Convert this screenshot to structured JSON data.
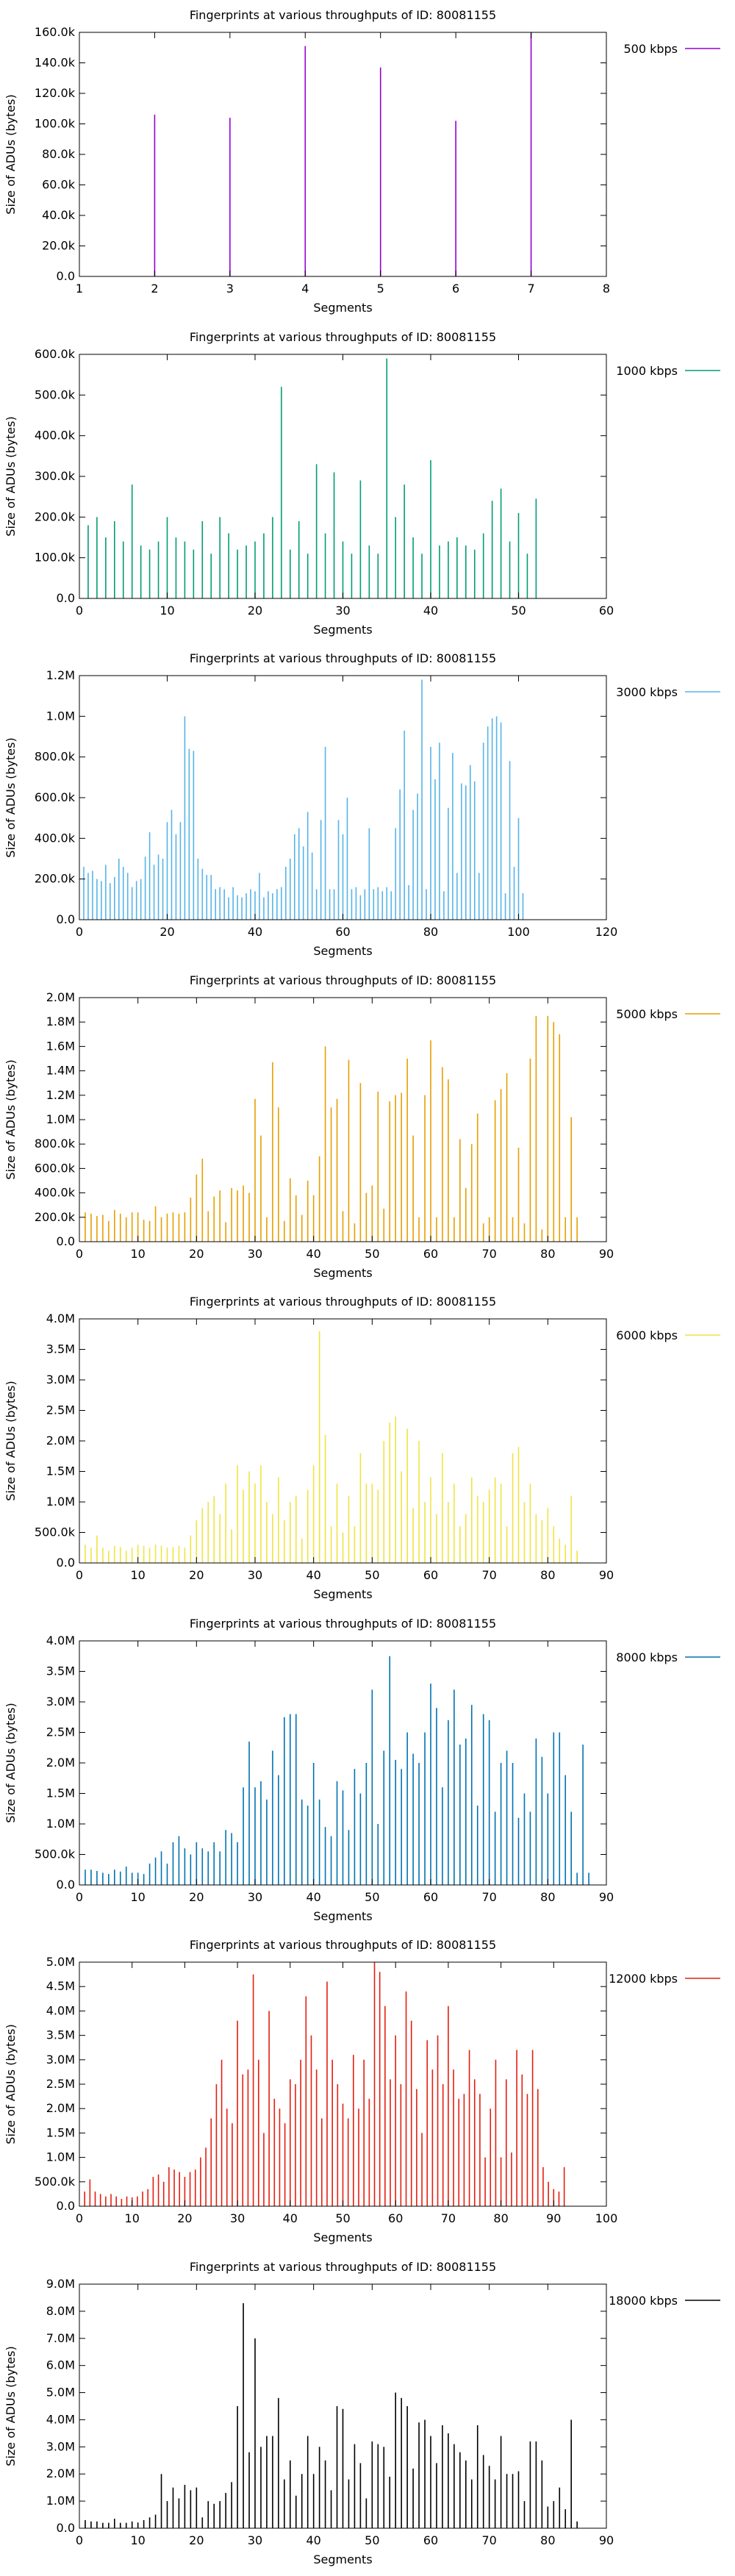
{
  "chart_data": [
    {
      "type": "bar",
      "title": "Fingerprints at various throughputs of ID: 80081155",
      "xlabel": "Segments",
      "ylabel": "Size of ADUs (bytes)",
      "legend": "500 kbps",
      "legend_position": "top-right outside",
      "color": "#9400d3",
      "xlim": [
        1,
        8
      ],
      "xticks": [
        1,
        2,
        3,
        4,
        5,
        6,
        7,
        8
      ],
      "ylim": [
        0,
        160000
      ],
      "yticks": [
        0,
        20000,
        40000,
        60000,
        80000,
        100000,
        120000,
        140000,
        160000
      ],
      "ytick_labels": [
        "0.0",
        "20.0k",
        "40.0k",
        "60.0k",
        "80.0k",
        "100.0k",
        "120.0k",
        "140.0k",
        "160.0k"
      ],
      "x": [
        2,
        3,
        4,
        5,
        6,
        7
      ],
      "values": [
        106000,
        104000,
        151000,
        137000,
        102000,
        160000
      ]
    },
    {
      "type": "bar",
      "title": "Fingerprints at various throughputs of ID: 80081155",
      "xlabel": "Segments",
      "ylabel": "Size of ADUs (bytes)",
      "legend": "1000 kbps",
      "legend_position": "top-right outside",
      "color": "#009e73",
      "xlim": [
        0,
        60
      ],
      "xticks": [
        0,
        10,
        20,
        30,
        40,
        50,
        60
      ],
      "ylim": [
        0,
        600000
      ],
      "yticks": [
        0,
        100000,
        200000,
        300000,
        400000,
        500000,
        600000
      ],
      "ytick_labels": [
        "0.0",
        "100.0k",
        "200.0k",
        "300.0k",
        "400.0k",
        "500.0k",
        "600.0k"
      ],
      "x_start": 1,
      "values": [
        180000,
        200000,
        150000,
        190000,
        140000,
        280000,
        130000,
        120000,
        140000,
        200000,
        150000,
        140000,
        120000,
        190000,
        110000,
        200000,
        160000,
        120000,
        130000,
        140000,
        160000,
        200000,
        520000,
        120000,
        190000,
        110000,
        330000,
        160000,
        310000,
        140000,
        110000,
        290000,
        130000,
        110000,
        590000,
        200000,
        280000,
        150000,
        110000,
        340000,
        130000,
        140000,
        150000,
        130000,
        120000,
        160000,
        240000,
        270000,
        140000,
        210000,
        110000,
        245000
      ]
    },
    {
      "type": "bar",
      "title": "Fingerprints at various throughputs of ID: 80081155",
      "xlabel": "Segments",
      "ylabel": "Size of ADUs (bytes)",
      "legend": "3000 kbps",
      "legend_position": "top-right outside",
      "color": "#56b4e9",
      "xlim": [
        0,
        120
      ],
      "xticks": [
        0,
        20,
        40,
        60,
        80,
        100,
        120
      ],
      "ylim": [
        0,
        1200000
      ],
      "yticks": [
        0,
        200000,
        400000,
        600000,
        800000,
        1000000,
        1200000
      ],
      "ytick_labels": [
        "0.0",
        "200.0k",
        "400.0k",
        "600.0k",
        "800.0k",
        "1.0M",
        "1.2M"
      ],
      "x_start": 1,
      "values": [
        260000,
        230000,
        240000,
        200000,
        190000,
        270000,
        180000,
        210000,
        300000,
        260000,
        230000,
        160000,
        190000,
        200000,
        310000,
        430000,
        270000,
        320000,
        300000,
        480000,
        540000,
        420000,
        480000,
        1000000,
        840000,
        830000,
        300000,
        250000,
        220000,
        220000,
        150000,
        160000,
        150000,
        110000,
        160000,
        120000,
        110000,
        130000,
        150000,
        140000,
        230000,
        110000,
        140000,
        130000,
        150000,
        160000,
        260000,
        300000,
        420000,
        450000,
        360000,
        530000,
        330000,
        150000,
        490000,
        850000,
        150000,
        150000,
        490000,
        420000,
        600000,
        150000,
        160000,
        120000,
        150000,
        450000,
        150000,
        160000,
        140000,
        160000,
        140000,
        450000,
        640000,
        930000,
        170000,
        540000,
        620000,
        1180000,
        150000,
        850000,
        690000,
        870000,
        140000,
        550000,
        820000,
        230000,
        670000,
        660000,
        760000,
        680000,
        230000,
        870000,
        950000,
        990000,
        1000000,
        970000,
        130000,
        780000,
        260000,
        500000,
        130000
      ]
    },
    {
      "type": "bar",
      "title": "Fingerprints at various throughputs of ID: 80081155",
      "xlabel": "Segments",
      "ylabel": "Size of ADUs (bytes)",
      "legend": "5000 kbps",
      "legend_position": "top-right outside",
      "color": "#e69f00",
      "xlim": [
        0,
        90
      ],
      "xticks": [
        0,
        10,
        20,
        30,
        40,
        50,
        60,
        70,
        80,
        90
      ],
      "ylim": [
        0,
        2000000
      ],
      "yticks": [
        0,
        200000,
        400000,
        600000,
        800000,
        1000000,
        1200000,
        1400000,
        1600000,
        1800000,
        2000000
      ],
      "ytick_labels": [
        "0.0",
        "200.0k",
        "400.0k",
        "600.0k",
        "800.0k",
        "1.0M",
        "1.2M",
        "1.4M",
        "1.6M",
        "1.8M",
        "2.0M"
      ],
      "x_start": 1,
      "values": [
        240000,
        230000,
        210000,
        220000,
        170000,
        260000,
        230000,
        200000,
        240000,
        240000,
        180000,
        170000,
        290000,
        200000,
        230000,
        240000,
        230000,
        240000,
        360000,
        550000,
        680000,
        250000,
        370000,
        420000,
        160000,
        440000,
        420000,
        460000,
        400000,
        1170000,
        870000,
        200000,
        1470000,
        1100000,
        170000,
        520000,
        380000,
        220000,
        500000,
        380000,
        700000,
        1600000,
        1100000,
        1170000,
        250000,
        1490000,
        150000,
        1300000,
        400000,
        460000,
        1230000,
        270000,
        1150000,
        1200000,
        1220000,
        1500000,
        870000,
        200000,
        1200000,
        1650000,
        200000,
        1430000,
        1330000,
        200000,
        840000,
        440000,
        800000,
        1050000,
        150000,
        200000,
        1160000,
        1250000,
        1380000,
        200000,
        770000,
        150000,
        1500000,
        1850000,
        100000,
        1850000,
        1800000,
        1700000,
        200000,
        1020000,
        200000
      ]
    },
    {
      "type": "bar",
      "title": "Fingerprints at various throughputs of ID: 80081155",
      "xlabel": "Segments",
      "ylabel": "Size of ADUs (bytes)",
      "legend": "6000 kbps",
      "legend_position": "top-right outside",
      "color": "#f0e442",
      "xlim": [
        0,
        90
      ],
      "xticks": [
        0,
        10,
        20,
        30,
        40,
        50,
        60,
        70,
        80,
        90
      ],
      "ylim": [
        0,
        4000000
      ],
      "yticks": [
        0,
        500000,
        1000000,
        1500000,
        2000000,
        2500000,
        3000000,
        3500000,
        4000000
      ],
      "ytick_labels": [
        "0.0",
        "500.0k",
        "1.0M",
        "1.5M",
        "2.0M",
        "2.5M",
        "3.0M",
        "3.5M",
        "4.0M"
      ],
      "x_start": 1,
      "values": [
        300000,
        250000,
        450000,
        250000,
        200000,
        280000,
        260000,
        200000,
        250000,
        300000,
        280000,
        250000,
        300000,
        280000,
        250000,
        260000,
        280000,
        250000,
        450000,
        700000,
        900000,
        1000000,
        1100000,
        800000,
        1300000,
        550000,
        1600000,
        1200000,
        1500000,
        1300000,
        1600000,
        1000000,
        800000,
        1400000,
        700000,
        1000000,
        1100000,
        400000,
        1200000,
        1600000,
        3800000,
        2100000,
        600000,
        1300000,
        500000,
        1100000,
        600000,
        1800000,
        1300000,
        1300000,
        1200000,
        2000000,
        2300000,
        2400000,
        1500000,
        2200000,
        900000,
        2000000,
        1000000,
        1400000,
        800000,
        1800000,
        1000000,
        1300000,
        600000,
        800000,
        1400000,
        1100000,
        1000000,
        1200000,
        1400000,
        1300000,
        600000,
        1800000,
        1900000,
        1000000,
        1300000,
        800000,
        700000,
        900000,
        600000,
        400000,
        300000,
        1100000,
        200000
      ]
    },
    {
      "type": "bar",
      "title": "Fingerprints at various throughputs of ID: 80081155",
      "xlabel": "Segments",
      "ylabel": "Size of ADUs (bytes)",
      "legend": "8000 kbps",
      "legend_position": "top-right outside",
      "color": "#0072b2",
      "xlim": [
        0,
        90
      ],
      "xticks": [
        0,
        10,
        20,
        30,
        40,
        50,
        60,
        70,
        80,
        90
      ],
      "ylim": [
        0,
        4000000
      ],
      "yticks": [
        0,
        500000,
        1000000,
        1500000,
        2000000,
        2500000,
        3000000,
        3500000,
        4000000
      ],
      "ytick_labels": [
        "0.0",
        "500.0k",
        "1.0M",
        "1.5M",
        "2.0M",
        "2.5M",
        "3.0M",
        "3.5M",
        "4.0M"
      ],
      "x_start": 1,
      "values": [
        250000,
        250000,
        230000,
        200000,
        180000,
        250000,
        220000,
        300000,
        200000,
        200000,
        180000,
        350000,
        450000,
        550000,
        350000,
        700000,
        800000,
        600000,
        500000,
        700000,
        600000,
        550000,
        700000,
        550000,
        900000,
        850000,
        700000,
        1600000,
        2350000,
        1600000,
        1700000,
        1400000,
        2200000,
        1800000,
        2750000,
        2800000,
        2800000,
        1400000,
        1300000,
        2000000,
        1400000,
        950000,
        800000,
        1700000,
        1550000,
        900000,
        1900000,
        1500000,
        2000000,
        3200000,
        1000000,
        2200000,
        3750000,
        2050000,
        1900000,
        2500000,
        2150000,
        2000000,
        2500000,
        3300000,
        2900000,
        1600000,
        2700000,
        3200000,
        2300000,
        2400000,
        2950000,
        1300000,
        2800000,
        2700000,
        1200000,
        2000000,
        2200000,
        2000000,
        1100000,
        1500000,
        1200000,
        2400000,
        2100000,
        1500000,
        2500000,
        2500000,
        1800000,
        1200000,
        200000,
        2300000,
        200000
      ]
    },
    {
      "type": "bar",
      "title": "Fingerprints at various throughputs of ID: 80081155",
      "xlabel": "Segments",
      "ylabel": "Size of ADUs (bytes)",
      "legend": "12000 kbps",
      "legend_position": "top-right outside",
      "color": "#e51e10",
      "xlim": [
        0,
        100
      ],
      "xticks": [
        0,
        10,
        20,
        30,
        40,
        50,
        60,
        70,
        80,
        90,
        100
      ],
      "ylim": [
        0,
        5000000
      ],
      "yticks": [
        0,
        500000,
        1000000,
        1500000,
        2000000,
        2500000,
        3000000,
        3500000,
        4000000,
        4500000,
        5000000
      ],
      "ytick_labels": [
        "0.0",
        "500.0k",
        "1.0M",
        "1.5M",
        "2.0M",
        "2.5M",
        "3.0M",
        "3.5M",
        "4.0M",
        "4.5M",
        "5.0M"
      ],
      "x_start": 1,
      "values": [
        300000,
        550000,
        300000,
        250000,
        200000,
        250000,
        200000,
        150000,
        200000,
        180000,
        200000,
        300000,
        350000,
        600000,
        650000,
        500000,
        800000,
        750000,
        700000,
        600000,
        700000,
        750000,
        1000000,
        1200000,
        1800000,
        2500000,
        3000000,
        2000000,
        1700000,
        3800000,
        2700000,
        2800000,
        4750000,
        3000000,
        1500000,
        4000000,
        2200000,
        2000000,
        1700000,
        2600000,
        2500000,
        3000000,
        4300000,
        3500000,
        2800000,
        1800000,
        4600000,
        3000000,
        2500000,
        2100000,
        1800000,
        3100000,
        2000000,
        3000000,
        2200000,
        5000000,
        4800000,
        4100000,
        2600000,
        3500000,
        2500000,
        4400000,
        3800000,
        2400000,
        1500000,
        3400000,
        2800000,
        3500000,
        2500000,
        4100000,
        2800000,
        2200000,
        2300000,
        3200000,
        2600000,
        2300000,
        1000000,
        2000000,
        3000000,
        1000000,
        2600000,
        1100000,
        3200000,
        2700000,
        2300000,
        3200000,
        2400000,
        800000,
        500000,
        350000,
        300000,
        800000
      ]
    },
    {
      "type": "bar",
      "title": "Fingerprints at various throughputs of ID: 80081155",
      "xlabel": "Segments",
      "ylabel": "Size of ADUs (bytes)",
      "legend": "18000 kbps",
      "legend_position": "top-right outside",
      "color": "#000000",
      "xlim": [
        0,
        90
      ],
      "xticks": [
        0,
        10,
        20,
        30,
        40,
        50,
        60,
        70,
        80,
        90
      ],
      "ylim": [
        0,
        9000000
      ],
      "yticks": [
        0,
        1000000,
        2000000,
        3000000,
        4000000,
        5000000,
        6000000,
        7000000,
        8000000,
        9000000
      ],
      "ytick_labels": [
        "0.0",
        "1.0M",
        "2.0M",
        "3.0M",
        "4.0M",
        "5.0M",
        "6.0M",
        "7.0M",
        "8.0M",
        "9.0M"
      ],
      "x_start": 1,
      "values": [
        300000,
        250000,
        250000,
        200000,
        200000,
        350000,
        200000,
        200000,
        250000,
        200000,
        300000,
        400000,
        500000,
        2000000,
        1000000,
        1500000,
        1100000,
        1600000,
        1400000,
        1500000,
        400000,
        1000000,
        900000,
        1000000,
        1300000,
        1700000,
        4500000,
        8300000,
        2800000,
        7000000,
        3000000,
        3400000,
        3400000,
        4800000,
        1800000,
        2500000,
        1200000,
        2000000,
        3400000,
        2000000,
        3000000,
        2500000,
        1400000,
        4500000,
        4400000,
        1800000,
        3100000,
        2400000,
        1100000,
        3200000,
        3100000,
        3000000,
        1900000,
        5000000,
        4800000,
        4500000,
        2200000,
        3900000,
        4000000,
        3400000,
        2400000,
        3800000,
        3500000,
        3100000,
        2800000,
        2500000,
        1800000,
        3800000,
        2700000,
        2300000,
        1800000,
        3400000,
        2000000,
        2000000,
        2100000,
        1000000,
        3200000,
        3200000,
        2500000,
        800000,
        1000000,
        1500000,
        700000,
        4000000,
        250000
      ]
    }
  ]
}
